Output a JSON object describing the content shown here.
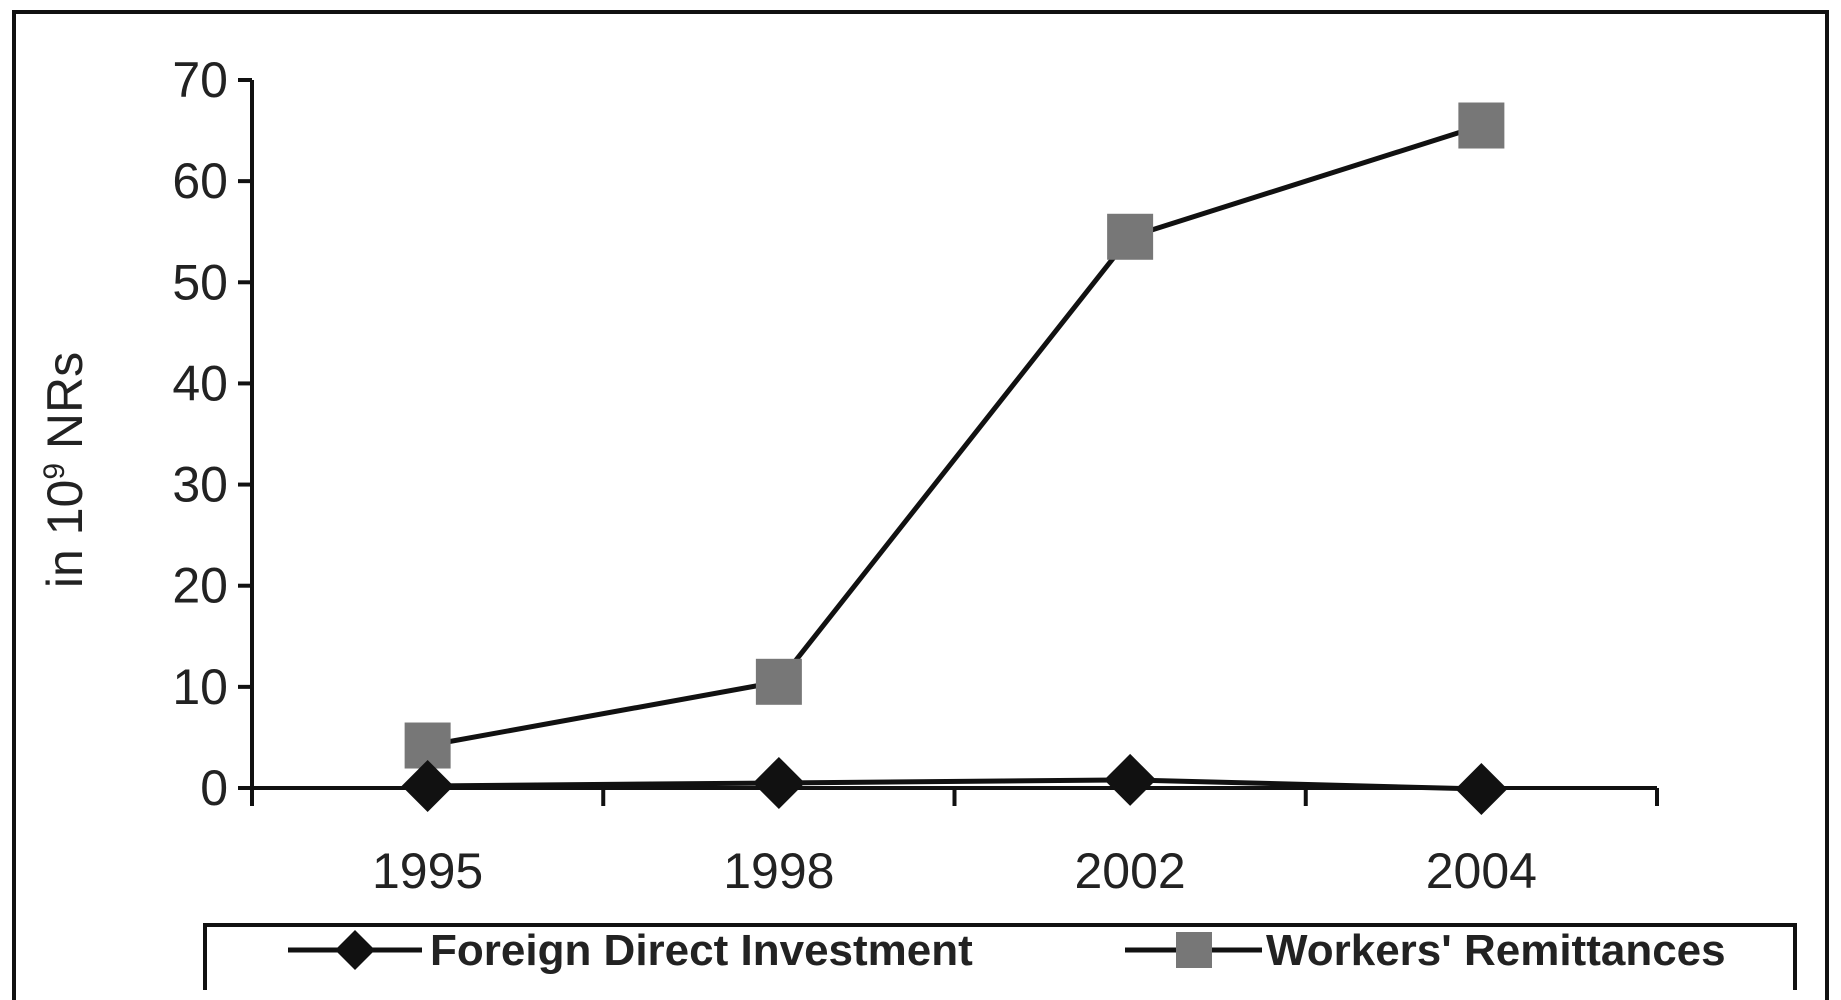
{
  "chart_data": {
    "type": "line",
    "categories": [
      "1995",
      "1998",
      "2002",
      "2004"
    ],
    "series": [
      {
        "name": "Foreign Direct Investment",
        "values": [
          0.2,
          0.5,
          0.8,
          -0.1
        ],
        "color": "#111111",
        "marker": "diamond"
      },
      {
        "name": "Workers' Remittances",
        "values": [
          4.2,
          10.5,
          54.5,
          65.5
        ],
        "color": "#777777",
        "marker": "square"
      }
    ],
    "ylabel_main": "in 10",
    "ylabel_sup": "9",
    "ylabel_tail": " NRs",
    "ylim": [
      0,
      70
    ],
    "yticks": [
      "0",
      "10",
      "20",
      "30",
      "40",
      "50",
      "60",
      "70"
    ],
    "grid": false,
    "legend_position": "bottom"
  }
}
